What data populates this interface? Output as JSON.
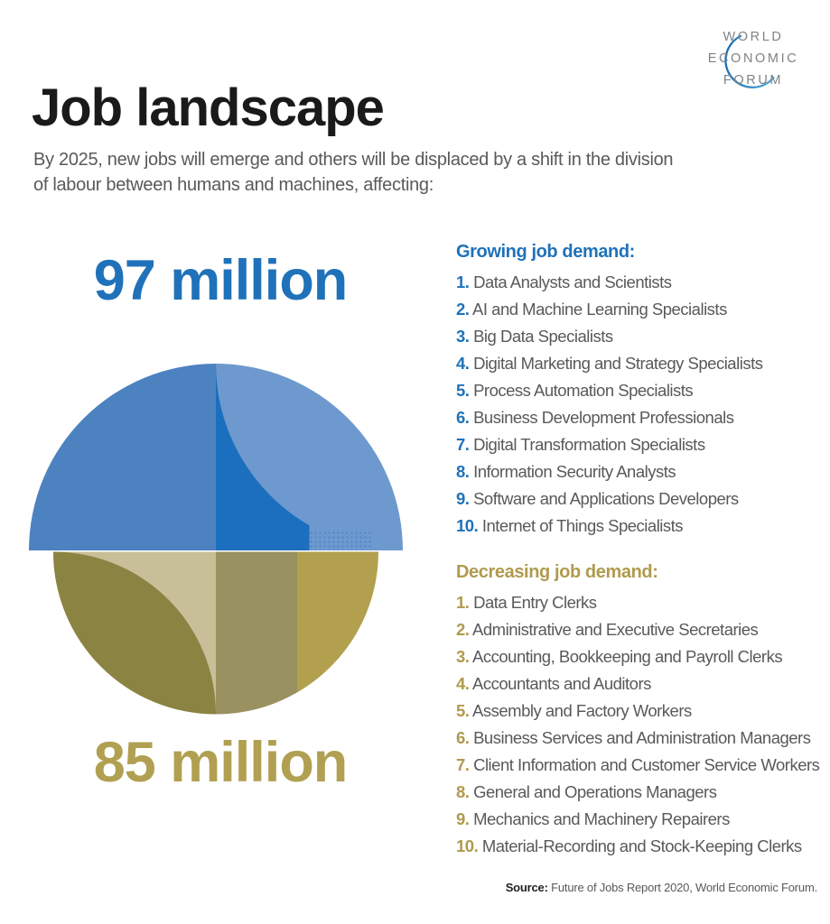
{
  "logo": {
    "lines": [
      "WORLD",
      "ECONOMIC",
      "FORUM"
    ]
  },
  "header": {
    "title": "Job landscape",
    "subtitle": "By 2025, new jobs will emerge and others will be displaced by a shift in the division of labour between humans and machines, affecting:"
  },
  "chart_data": {
    "type": "pie",
    "title": "Job landscape",
    "subtitle": "By 2025, new jobs will emerge and others will be displaced by a shift in the division of labour between humans and machines, affecting:",
    "series": [
      {
        "name": "Growing job demand (new jobs emerging)",
        "value": 97,
        "unit": "million jobs",
        "label": "97 million",
        "position": "top semicircle",
        "color": "#4D82C0"
      },
      {
        "name": "Decreasing job demand (jobs displaced)",
        "value": 85,
        "unit": "million jobs",
        "label": "85 million",
        "position": "bottom semicircle",
        "color": "#B2A04F"
      }
    ],
    "note": "Two opposed semicircles with quarter-circle petal overlays; radii proportional to the 97 and 85 million values",
    "legend_position": "right column lists"
  },
  "sections": {
    "growing": {
      "heading": "Growing job demand:",
      "items": [
        "Data Analysts and Scientists",
        "AI and Machine Learning Specialists",
        "Big Data Specialists",
        "Digital Marketing and Strategy Specialists",
        "Process Automation Specialists",
        "Business Development Professionals",
        "Digital Transformation Specialists",
        "Information Security Analysts",
        "Software and Applications Developers",
        "Internet of Things Specialists"
      ]
    },
    "decreasing": {
      "heading": "Decreasing job demand:",
      "items": [
        "Data Entry Clerks",
        "Administrative and Executive Secretaries",
        "Accounting, Bookkeeping and Payroll Clerks",
        "Accountants and Auditors",
        "Assembly and Factory Workers",
        "Business Services and Administration Managers",
        "Client Information and Customer Service Workers",
        "General and Operations Managers",
        "Mechanics and Machinery Repairers",
        "Material-Recording and Stock-Keeping Clerks"
      ]
    }
  },
  "source": {
    "label": "Source:",
    "text": " Future of Jobs Report 2020, World Economic Forum."
  },
  "colors": {
    "blue_text": "#1F72B9",
    "gold_text": "#B19A4E",
    "figure_gold": "#B1A052",
    "body_gray": "#58595B",
    "title_black": "#1A1A1A",
    "blue_medium": "#4D82C0",
    "blue_light": "#6E99CE",
    "blue_dark": "#1C6FBE",
    "gold_tan": "#C8BF99",
    "gold_dark": "#8B8342",
    "gold_mid": "#9A9160",
    "gold_bright": "#B2A04F",
    "logo_gray": "#7F8285",
    "logo_arc_start": "#1B6FB4",
    "logo_arc_end": "#56AADB"
  }
}
